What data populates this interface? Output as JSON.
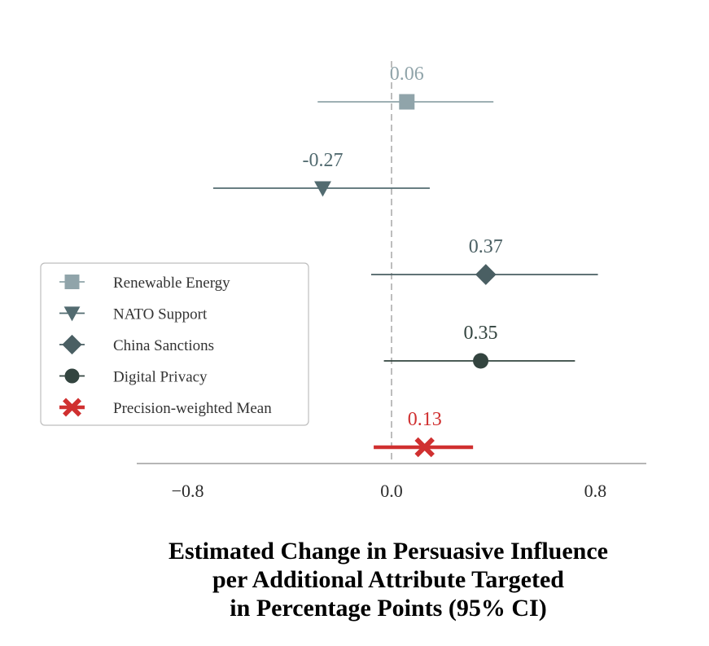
{
  "chart_data": {
    "type": "forest",
    "title": "",
    "xlabel_lines": [
      "Estimated Change in Persuasive Influence",
      "per Additional Attribute Targeted",
      "in Percentage Points (95% CI)"
    ],
    "xlim": [
      -1.0,
      1.0
    ],
    "xticks": [
      -0.8,
      0.0,
      0.8
    ],
    "xtick_labels": [
      "−0.8",
      "0.0",
      "0.8"
    ],
    "reference_line": 0.0,
    "legend_position": "left-middle",
    "series": [
      {
        "name": "Renewable Energy",
        "estimate": 0.06,
        "ci_low": -0.29,
        "ci_high": 0.4,
        "label": "0.06",
        "marker": "square",
        "color": "#90a4aa"
      },
      {
        "name": "NATO Support",
        "estimate": -0.27,
        "ci_low": -0.7,
        "ci_high": 0.15,
        "label": "-0.27",
        "marker": "triangle-down",
        "color": "#526b70"
      },
      {
        "name": "China Sanctions",
        "estimate": 0.37,
        "ci_low": -0.08,
        "ci_high": 0.81,
        "label": "0.37",
        "marker": "diamond",
        "color": "#4a5f63"
      },
      {
        "name": "Digital Privacy",
        "estimate": 0.35,
        "ci_low": -0.03,
        "ci_high": 0.72,
        "label": "0.35",
        "marker": "circle",
        "color": "#33443f"
      },
      {
        "name": "Precision-weighted Mean",
        "estimate": 0.13,
        "ci_low": -0.07,
        "ci_high": 0.32,
        "label": "0.13",
        "marker": "x",
        "color": "#d03030"
      }
    ]
  }
}
